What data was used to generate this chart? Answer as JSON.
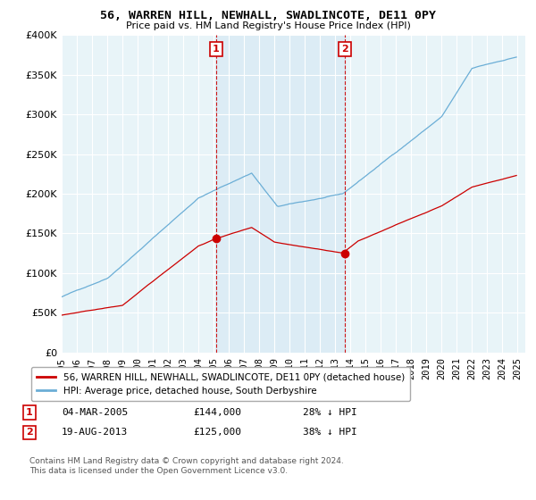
{
  "title": "56, WARREN HILL, NEWHALL, SWADLINCOTE, DE11 0PY",
  "subtitle": "Price paid vs. HM Land Registry's House Price Index (HPI)",
  "legend_line1": "56, WARREN HILL, NEWHALL, SWADLINCOTE, DE11 0PY (detached house)",
  "legend_line2": "HPI: Average price, detached house, South Derbyshire",
  "annotation1_date": "04-MAR-2005",
  "annotation1_price": "£144,000",
  "annotation1_hpi": "28% ↓ HPI",
  "annotation2_date": "19-AUG-2013",
  "annotation2_price": "£125,000",
  "annotation2_hpi": "38% ↓ HPI",
  "footnote": "Contains HM Land Registry data © Crown copyright and database right 2024.\nThis data is licensed under the Open Government Licence v3.0.",
  "hpi_color": "#6baed6",
  "price_color": "#cc0000",
  "annotation_color": "#cc0000",
  "vline_color": "#cc0000",
  "shade_color": "#daeaf5",
  "background_color": "#e8f4f8",
  "grid_color": "#ffffff",
  "ylim": [
    0,
    400000
  ],
  "yticks": [
    0,
    50000,
    100000,
    150000,
    200000,
    250000,
    300000,
    350000,
    400000
  ],
  "xlim_start": 1995,
  "xlim_end": 2025.5,
  "vline1_year": 2005.167,
  "vline2_year": 2013.625,
  "annot1_price_val": 144000,
  "annot2_price_val": 125000
}
